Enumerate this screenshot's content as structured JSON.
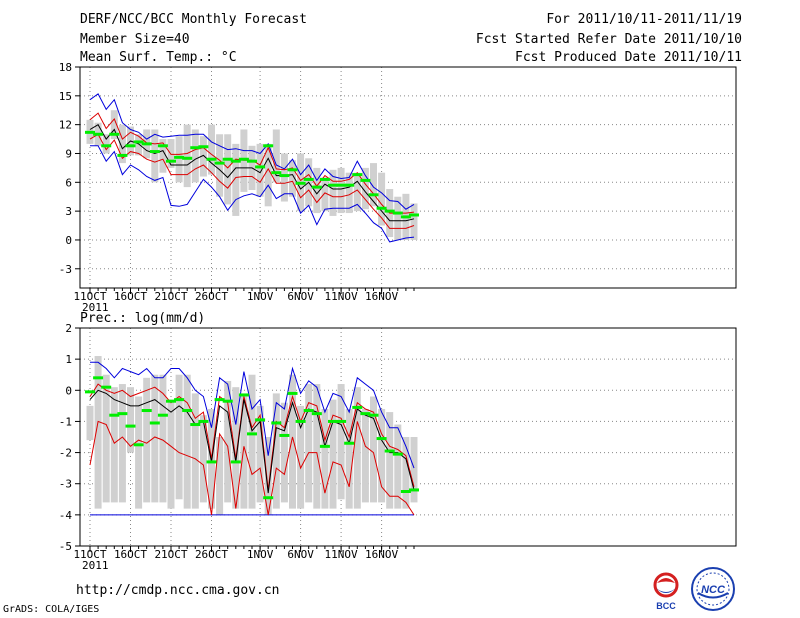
{
  "header": {
    "title": "DERF/NCC/BCC Monthly Forecast",
    "member": "Member Size=40",
    "variable": "Mean Surf. Temp.: °C",
    "period": "For 2011/10/11-2011/11/19",
    "refer": "Fcst Started Refer Date 2011/10/10",
    "produced": "Fcst Produced Date 2011/10/11"
  },
  "footer": {
    "url": "http://cmdp.ncc.cma.gov.cn",
    "credit": "GrADS: COLA/IGES"
  },
  "logos": {
    "left": "BCC",
    "right": "NCC"
  },
  "colors": {
    "envelope": "#0000dd",
    "spread": "#dd0000",
    "mean": "#000000",
    "obs_box": "#d0d0d0",
    "marker": "#00ee00"
  },
  "chart_data": [
    {
      "type": "box-ensemble",
      "title": "Mean Surf. Temp.: °C",
      "ylim": [
        -5,
        18
      ],
      "yticks": [
        -3,
        0,
        3,
        6,
        9,
        12,
        15,
        18
      ],
      "xlim": [
        1,
        42
      ],
      "xticks": [
        {
          "x": 1,
          "label": "11OCT"
        },
        {
          "x": 6,
          "label": "16OCT"
        },
        {
          "x": 11,
          "label": "21OCT"
        },
        {
          "x": 16,
          "label": "26OCT"
        },
        {
          "x": 22,
          "label": "1NOV"
        },
        {
          "x": 27,
          "label": "6NOV"
        },
        {
          "x": 32,
          "label": "11NOV"
        },
        {
          "x": 37,
          "label": "16NOV"
        }
      ],
      "year_label": "2011",
      "box_low": [
        10,
        9.8,
        9,
        10.5,
        8,
        8.8,
        8.8,
        8.5,
        6,
        7,
        7.5,
        6,
        5.5,
        6,
        6.6,
        6.8,
        4.5,
        3.7,
        2.5,
        5,
        5.2,
        4.5,
        3.5,
        6,
        4,
        4.5,
        3,
        3.5,
        2.8,
        3,
        2.5,
        2.8,
        2.8,
        3,
        3.2,
        3.5,
        1.5,
        0.3,
        0,
        0,
        0
      ],
      "box_high": [
        12.5,
        12.2,
        11,
        13.5,
        12,
        11.8,
        11,
        11.5,
        11.5,
        10.5,
        10.5,
        10.8,
        12,
        11.5,
        10.8,
        12,
        11,
        11,
        10,
        11.5,
        9.8,
        10,
        10,
        11.5,
        9,
        8.3,
        9,
        8.5,
        7.5,
        6.5,
        7.3,
        7.5,
        7,
        7,
        7.5,
        8,
        7,
        5.3,
        4.5,
        4.8,
        3.8
      ],
      "marker": [
        11.2,
        11,
        9.8,
        11,
        8.8,
        9.8,
        10.2,
        10,
        9.2,
        9.8,
        8.2,
        8.6,
        8.5,
        9.6,
        9.7,
        8.4,
        8.0,
        8.4,
        8.2,
        8.4,
        8.2,
        7.6,
        9.8,
        7.0,
        6.7,
        7.3,
        5.9,
        6.3,
        5.5,
        6.3,
        5.7,
        5.7,
        5.7,
        6.8,
        6.2,
        4.7,
        3.3,
        3.0,
        2.8,
        2.4,
        2.6
      ],
      "mean": [
        11.5,
        12.0,
        10.5,
        11.5,
        9.5,
        10.3,
        10.0,
        9.3,
        9.0,
        9.3,
        7.8,
        7.8,
        7.8,
        8.4,
        8.8,
        8.0,
        7.3,
        6.5,
        7.5,
        7.5,
        7.5,
        7.0,
        8.5,
        6.7,
        6.7,
        6.8,
        5.3,
        6.0,
        4.8,
        5.8,
        5.3,
        5.3,
        5.5,
        6.1,
        5.0,
        4.0,
        3.0,
        2.0,
        2.0,
        2.0,
        2.2
      ],
      "upper_red": [
        12.5,
        13.2,
        11.6,
        12.6,
        10.5,
        11.2,
        10.8,
        10.1,
        10.0,
        10.1,
        8.9,
        8.9,
        9.0,
        9.4,
        9.6,
        8.9,
        8.3,
        7.5,
        8.4,
        8.3,
        8.3,
        7.8,
        9.6,
        7.4,
        7.3,
        7.5,
        6.2,
        6.8,
        5.6,
        6.7,
        6.1,
        6.1,
        6.3,
        7.0,
        5.8,
        4.8,
        3.7,
        2.8,
        2.8,
        2.8,
        2.9
      ],
      "lower_red": [
        10.5,
        11.0,
        9.4,
        10.4,
        8.5,
        9.2,
        9.0,
        8.4,
        8.1,
        8.4,
        6.8,
        6.8,
        6.8,
        7.4,
        7.8,
        7.0,
        6.1,
        5.4,
        6.5,
        6.6,
        6.6,
        6.0,
        7.4,
        5.9,
        5.9,
        6.1,
        4.4,
        5.2,
        3.9,
        4.9,
        4.5,
        4.5,
        4.7,
        5.2,
        4.2,
        3.2,
        2.3,
        1.2,
        1.2,
        1.2,
        1.5
      ],
      "upper_blue": [
        14.6,
        15.2,
        13.6,
        14.6,
        12.2,
        11.5,
        11.2,
        10.5,
        11.0,
        10.7,
        10.8,
        10.9,
        10.9,
        11.0,
        11.0,
        10.2,
        9.8,
        9.4,
        9.5,
        9.3,
        9.3,
        9.0,
        10.0,
        7.8,
        7.4,
        8.4,
        6.8,
        7.8,
        6.2,
        7.4,
        6.6,
        6.4,
        6.5,
        8.2,
        6.7,
        5.5,
        4.9,
        4.1,
        4.0,
        3.2,
        3.7
      ],
      "lower_blue": [
        9.8,
        9.8,
        8.2,
        9.2,
        6.8,
        7.8,
        7.3,
        6.6,
        6.2,
        6.5,
        3.6,
        3.5,
        3.7,
        5.0,
        6.3,
        5.5,
        4.5,
        3.1,
        4.2,
        4.6,
        4.8,
        4.5,
        5.7,
        4.3,
        4.8,
        4.8,
        2.8,
        3.6,
        1.6,
        3.2,
        3.3,
        3.3,
        3.3,
        3.7,
        2.8,
        1.8,
        1.2,
        -0.2,
        0.0,
        0.2,
        0.3
      ]
    },
    {
      "type": "box-ensemble",
      "title": "Prec.: log(mm/d)",
      "ylim": [
        -5,
        2
      ],
      "yticks": [
        -5,
        -4,
        -3,
        -2,
        -1,
        0,
        1,
        2
      ],
      "xlim": [
        1,
        42
      ],
      "xticks": [
        {
          "x": 1,
          "label": "11OCT"
        },
        {
          "x": 6,
          "label": "16OCT"
        },
        {
          "x": 11,
          "label": "21OCT"
        },
        {
          "x": 16,
          "label": "26OCT"
        },
        {
          "x": 22,
          "label": "1NOV"
        },
        {
          "x": 27,
          "label": "6NOV"
        },
        {
          "x": 32,
          "label": "11NOV"
        },
        {
          "x": 37,
          "label": "16NOV"
        }
      ],
      "year_label": "2011",
      "floor": -4,
      "box_low": [
        -1.6,
        -3.8,
        -3.6,
        -3.6,
        -3.6,
        -2.0,
        -3.8,
        -3.6,
        -3.6,
        -3.6,
        -3.8,
        -3.5,
        -3.8,
        -3.8,
        -3.6,
        -3.8,
        -4,
        -3.6,
        -3.8,
        -3.8,
        -3.8,
        -3.6,
        -4,
        -3.8,
        -3.6,
        -3.8,
        -3.8,
        -3.6,
        -3.8,
        -3.8,
        -3.8,
        -3.5,
        -3.8,
        -3.8,
        -3.6,
        -3.6,
        -3.6,
        -3.8,
        -3.8,
        -3.8,
        -3.6
      ],
      "box_high": [
        -0.5,
        1.1,
        0.5,
        0.1,
        0.2,
        0.1,
        -0.2,
        0.4,
        0.5,
        0.5,
        -0.3,
        0.5,
        0.5,
        -0.1,
        -0.8,
        -0.6,
        -1.5,
        0.3,
        0.1,
        -0.1,
        0.5,
        -0.5,
        -1.5,
        -0.1,
        -0.4,
        0.5,
        -0.5,
        0.2,
        0.2,
        -0.6,
        -0.3,
        0.2,
        -0.6,
        0.1,
        -0.6,
        -0.2,
        -0.6,
        -0.7,
        -1.1,
        -1.5,
        -1.5
      ],
      "marker": [
        -0.05,
        0.4,
        0.1,
        -0.8,
        -0.75,
        -1.15,
        -1.75,
        -0.65,
        -1.05,
        -0.8,
        -0.35,
        -0.3,
        -0.65,
        -1.1,
        -1.0,
        -2.3,
        -0.3,
        -0.35,
        -2.3,
        -0.15,
        -1.4,
        -0.95,
        -3.45,
        -1.05,
        -1.45,
        -0.1,
        -1.0,
        -0.65,
        -0.75,
        -1.8,
        -1.0,
        -1.0,
        -1.7,
        -0.55,
        -0.75,
        -0.8,
        -1.55,
        -1.95,
        -2.05,
        -3.25,
        -3.2
      ],
      "mean": [
        -0.3,
        0.0,
        -0.1,
        -0.3,
        -0.4,
        -0.5,
        -0.5,
        -0.4,
        -0.3,
        -0.5,
        -0.7,
        -0.5,
        -0.7,
        -1.1,
        -1.0,
        -2.3,
        -0.5,
        -0.7,
        -2.3,
        -0.3,
        -1.3,
        -1.0,
        -3.3,
        -1.2,
        -1.3,
        -0.4,
        -1.2,
        -0.6,
        -0.7,
        -1.8,
        -1.0,
        -1.1,
        -1.7,
        -0.6,
        -0.8,
        -0.9,
        -1.6,
        -2.0,
        -2.0,
        -2.2,
        -3.2
      ],
      "upper_red": [
        -0.2,
        0.2,
        0.0,
        -0.1,
        0.0,
        -0.2,
        -0.1,
        0.0,
        0.1,
        -0.1,
        -0.4,
        -0.2,
        -0.4,
        -0.9,
        -0.7,
        -2.2,
        -0.2,
        -0.4,
        -2.2,
        -0.2,
        -1.2,
        -0.8,
        -3.2,
        -1.0,
        -1.2,
        -0.2,
        -1.0,
        -0.4,
        -0.5,
        -1.6,
        -0.8,
        -0.9,
        -1.5,
        -0.4,
        -0.6,
        -0.7,
        -1.4,
        -1.8,
        -1.9,
        -2.1,
        -3.1
      ],
      "lower_red": [
        -2.4,
        -1.0,
        -1.1,
        -1.7,
        -1.5,
        -1.8,
        -1.6,
        -1.7,
        -1.5,
        -1.6,
        -1.8,
        -2.0,
        -2.1,
        -2.2,
        -2.4,
        -4.0,
        -1.4,
        -1.8,
        -3.8,
        -1.8,
        -2.7,
        -2.5,
        -4.0,
        -2.5,
        -2.7,
        -1.5,
        -2.5,
        -2.0,
        -2.0,
        -3.3,
        -2.3,
        -2.4,
        -3.1,
        -1.0,
        -1.8,
        -2.0,
        -3.1,
        -3.4,
        -3.4,
        -3.6,
        -4.0
      ],
      "upper_blue": [
        0.9,
        0.9,
        0.7,
        0.4,
        0.7,
        0.6,
        0.5,
        0.7,
        0.4,
        0.4,
        0.7,
        0.7,
        0.4,
        0.0,
        -0.2,
        -1.2,
        0.4,
        0.2,
        -1.1,
        0.6,
        -0.6,
        -0.3,
        -2.1,
        -0.4,
        -0.6,
        0.7,
        -0.1,
        0.3,
        0.1,
        -0.7,
        -0.1,
        -0.2,
        -0.7,
        0.4,
        0.2,
        0.0,
        -0.7,
        -1.2,
        -1.2,
        -1.8,
        -2.5
      ],
      "lower_blue": [
        -4,
        -4,
        -4,
        -4,
        -4,
        -4,
        -4,
        -4,
        -4,
        -4,
        -4,
        -4,
        -4,
        -4,
        -4,
        -4,
        -4,
        -4,
        -4,
        -4,
        -4,
        -4,
        -4,
        -4,
        -4,
        -4,
        -4,
        -4,
        -4,
        -4,
        -4,
        -4,
        -4,
        -4,
        -4,
        -4,
        -4,
        -4,
        -4,
        -4,
        -4
      ]
    }
  ]
}
